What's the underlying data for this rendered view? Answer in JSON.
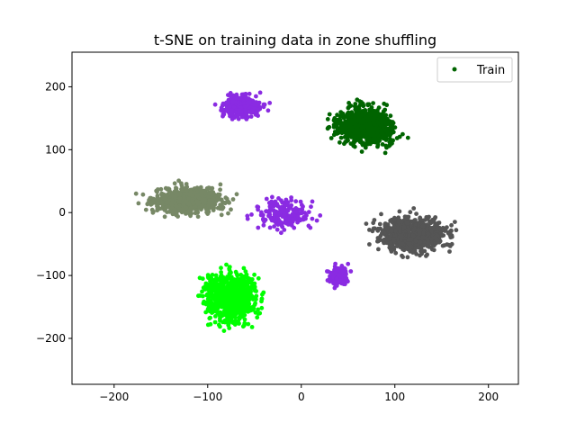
{
  "chart_data": {
    "type": "scatter",
    "title": "t-SNE on training data in zone shuffling",
    "xlabel": "",
    "ylabel": "",
    "xlim": [
      -245,
      232
    ],
    "ylim": [
      -273,
      255
    ],
    "xticks": [
      -200,
      -100,
      0,
      100,
      200
    ],
    "yticks": [
      -200,
      -100,
      0,
      100,
      200
    ],
    "xtick_labels": [
      "−200",
      "−100",
      "0",
      "100",
      "200"
    ],
    "ytick_labels": [
      "−200",
      "−100",
      "0",
      "100",
      "200"
    ],
    "grid": false,
    "legend": {
      "placement": "top-right",
      "entries": [
        {
          "label": "Train",
          "color": "#006400"
        }
      ]
    },
    "clusters": [
      {
        "color": "#006400",
        "center": [
          68,
          138
        ],
        "spread": [
          45,
          42
        ],
        "count": 900
      },
      {
        "color": "#555555",
        "center": [
          120,
          -35
        ],
        "spread": [
          55,
          40
        ],
        "count": 800
      },
      {
        "color": "#00ff00",
        "center": [
          -75,
          -135
        ],
        "spread": [
          40,
          60
        ],
        "count": 850
      },
      {
        "color": "#778866",
        "center": [
          -120,
          20
        ],
        "spread": [
          55,
          30
        ],
        "count": 800
      },
      {
        "color": "#8a2be2",
        "center": [
          -65,
          170
        ],
        "spread": [
          30,
          25
        ],
        "count": 450
      },
      {
        "color": "#8a2be2",
        "center": [
          40,
          -100
        ],
        "spread": [
          14,
          25
        ],
        "count": 200
      },
      {
        "color": "#8a2be2",
        "center": [
          -20,
          0
        ],
        "spread": [
          45,
          35
        ],
        "count": 200
      }
    ]
  }
}
